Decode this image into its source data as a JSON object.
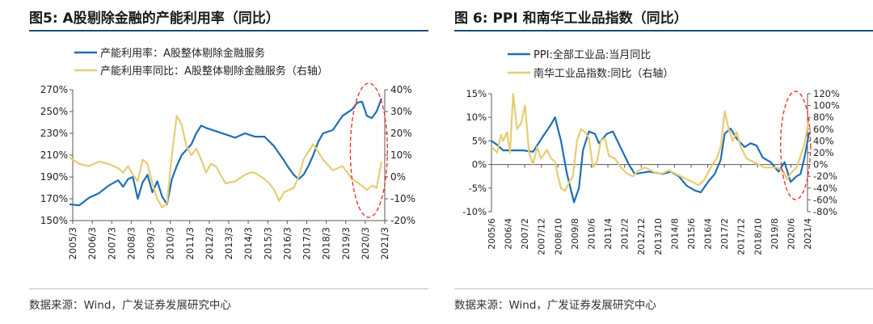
{
  "colors": {
    "blue": "#1f6fb2",
    "yellow": "#e6cd74",
    "axis": "#595959",
    "highlight": "#e53935"
  },
  "left": {
    "title": "图5: A股剔除金融的产能利用率（同比）",
    "source": "数据来源：Wind，广发证券发展研究中心"
  },
  "right": {
    "title": "图 6: PPI 和南华工业品指数（同比）",
    "source": "数据来源：Wind，广发证券发展研究中心"
  },
  "chart_data": [
    {
      "type": "line",
      "title": "",
      "legend_position": "top-left",
      "grid": false,
      "x_ticks": [
        "2005/3",
        "2006/3",
        "2007/3",
        "2008/3",
        "2009/3",
        "2010/3",
        "2011/3",
        "2012/3",
        "2013/3",
        "2014/3",
        "2015/3",
        "2016/3",
        "2017/3",
        "2018/3",
        "2019/3",
        "2020/3",
        "2021/3"
      ],
      "y_left": {
        "min": 150,
        "max": 270,
        "step": 20,
        "unit": "%"
      },
      "y_right": {
        "min": -20,
        "max": 40,
        "step": 10,
        "unit": "%"
      },
      "series": [
        {
          "name": "产能利用率：A股整体剔除金融服务",
          "color": "blue",
          "axis": "left",
          "x": [
            2005.0,
            2005.5,
            2006.0,
            2006.5,
            2007.0,
            2007.5,
            2007.75,
            2008.0,
            2008.25,
            2008.5,
            2008.75,
            2009.0,
            2009.25,
            2009.5,
            2009.75,
            2010.0,
            2010.25,
            2010.5,
            2010.75,
            2011.0,
            2011.25,
            2011.5,
            2011.75,
            2012.0,
            2012.5,
            2013.0,
            2013.5,
            2014.0,
            2014.5,
            2015.0,
            2015.5,
            2016.0,
            2016.25,
            2016.5,
            2016.75,
            2017.0,
            2017.25,
            2017.5,
            2017.75,
            2018.0,
            2018.5,
            2019.0,
            2019.5,
            2019.75,
            2020.0,
            2020.25,
            2020.5,
            2020.75,
            2021.0
          ],
          "values": [
            165,
            164,
            171,
            175,
            182,
            187,
            181,
            188,
            190,
            170,
            185,
            192,
            176,
            186,
            172,
            165,
            188,
            200,
            210,
            215,
            220,
            230,
            237,
            235,
            232,
            229,
            226,
            230,
            227,
            227,
            218,
            205,
            198,
            192,
            188,
            192,
            200,
            210,
            222,
            230,
            233,
            246,
            252,
            258,
            259,
            246,
            244,
            250,
            262
          ]
        },
        {
          "name": "产能利用率同比：A股整体剔除金融服务（右轴）",
          "color": "yellow",
          "axis": "right",
          "x": [
            2005.0,
            2005.5,
            2006.0,
            2006.5,
            2007.0,
            2007.5,
            2007.75,
            2008.0,
            2008.25,
            2008.5,
            2008.75,
            2009.0,
            2009.25,
            2009.5,
            2009.75,
            2010.0,
            2010.25,
            2010.5,
            2010.75,
            2011.0,
            2011.25,
            2011.5,
            2011.75,
            2012.0,
            2012.25,
            2012.5,
            2013.0,
            2013.5,
            2014.0,
            2014.25,
            2014.5,
            2015.0,
            2015.25,
            2015.5,
            2015.75,
            2016.0,
            2016.5,
            2016.75,
            2017.0,
            2017.5,
            2018.0,
            2018.5,
            2019.0,
            2019.5,
            2020.0,
            2020.25,
            2020.5,
            2020.75,
            2021.0
          ],
          "values": [
            9,
            6,
            5,
            7,
            6,
            4,
            2,
            5,
            1,
            -2,
            8,
            6,
            -3,
            -10,
            -14,
            -12,
            10,
            28,
            24,
            14,
            10,
            13,
            8,
            2,
            6,
            5,
            -3,
            -2,
            1,
            2,
            2,
            -1,
            -3,
            -6,
            -11,
            -7,
            -5,
            0,
            8,
            15,
            8,
            3,
            5,
            -1,
            -4,
            -6,
            -4,
            -5,
            7
          ]
        }
      ],
      "annotations": [
        {
          "type": "dashed-ellipse",
          "color": "highlight",
          "x_range": [
            2019.4,
            2021.3
          ]
        }
      ]
    },
    {
      "type": "line",
      "title": "",
      "legend_position": "top-left",
      "grid": false,
      "x_ticks": [
        "2005/6",
        "2006/4",
        "2007/2",
        "2007/12",
        "2008/10",
        "2009/8",
        "2010/6",
        "2011/4",
        "2012/2",
        "2012/12",
        "2013/10",
        "2014/8",
        "2015/6",
        "2016/4",
        "2017/2",
        "2017/12",
        "2018/10",
        "2019/8",
        "2020/6",
        "2021/4"
      ],
      "y_left": {
        "min": -10,
        "max": 15,
        "step": 5,
        "unit": "%"
      },
      "y_right": {
        "min": -80,
        "max": 120,
        "step": 20,
        "unit": "%"
      },
      "series": [
        {
          "name": "PPI:全部工业品:当月同比",
          "color": "blue",
          "axis": "left",
          "x": [
            2005.42,
            2005.75,
            2006.0,
            2006.5,
            2007.0,
            2007.5,
            2008.0,
            2008.4,
            2008.6,
            2008.9,
            2009.2,
            2009.55,
            2009.8,
            2010.0,
            2010.3,
            2010.6,
            2010.8,
            2011.2,
            2011.5,
            2011.9,
            2012.3,
            2012.6,
            2012.9,
            2013.3,
            2013.7,
            2014.0,
            2014.4,
            2014.8,
            2015.2,
            2015.6,
            2015.9,
            2016.3,
            2016.6,
            2016.9,
            2017.1,
            2017.4,
            2017.7,
            2018.1,
            2018.4,
            2018.7,
            2019.0,
            2019.4,
            2019.8,
            2020.1,
            2020.4,
            2020.7,
            2020.9,
            2021.1,
            2021.33
          ],
          "values": [
            5,
            4,
            3,
            3,
            3,
            2.7,
            6,
            8.5,
            10,
            5,
            -2,
            -8,
            -5,
            3,
            7,
            6.5,
            4.5,
            6.5,
            7,
            3.5,
            0,
            -2,
            -1.8,
            -1.5,
            -1.8,
            -2,
            -1.5,
            -2.5,
            -4.5,
            -5.5,
            -5.9,
            -3.5,
            -2,
            1,
            6.5,
            7.6,
            5.5,
            3.7,
            4.5,
            4,
            1.5,
            0.5,
            -1.5,
            0.5,
            -3.7,
            -2.5,
            -2,
            1.5,
            6.8
          ]
        },
        {
          "name": "南华工业品指数:同比（右轴）",
          "color": "yellow",
          "axis": "right",
          "x": [
            2005.42,
            2005.7,
            2005.9,
            2006.0,
            2006.2,
            2006.35,
            2006.5,
            2006.7,
            2006.9,
            2007.1,
            2007.3,
            2007.5,
            2007.7,
            2007.9,
            2008.2,
            2008.4,
            2008.6,
            2008.75,
            2008.9,
            2009.1,
            2009.3,
            2009.5,
            2009.7,
            2009.9,
            2010.1,
            2010.3,
            2010.5,
            2010.7,
            2010.9,
            2011.1,
            2011.3,
            2011.6,
            2011.9,
            2012.2,
            2012.5,
            2012.8,
            2013.1,
            2013.4,
            2013.7,
            2014.0,
            2014.3,
            2014.6,
            2014.9,
            2015.2,
            2015.5,
            2015.8,
            2016.1,
            2016.4,
            2016.7,
            2016.9,
            2017.1,
            2017.3,
            2017.5,
            2017.7,
            2017.9,
            2018.2,
            2018.5,
            2018.8,
            2019.1,
            2019.4,
            2019.7,
            2020.0,
            2020.25,
            2020.4,
            2020.7,
            2020.9,
            2021.1,
            2021.33
          ],
          "values": [
            30,
            20,
            50,
            40,
            55,
            20,
            120,
            60,
            70,
            100,
            20,
            0,
            30,
            10,
            25,
            10,
            5,
            -20,
            -40,
            -45,
            -30,
            -20,
            40,
            60,
            55,
            45,
            -5,
            5,
            40,
            45,
            15,
            10,
            -5,
            -15,
            -20,
            -10,
            -5,
            -10,
            -15,
            -15,
            -10,
            -15,
            -20,
            -25,
            -30,
            -35,
            -25,
            -5,
            10,
            30,
            90,
            60,
            40,
            55,
            30,
            10,
            5,
            0,
            -5,
            -5,
            -5,
            -10,
            -25,
            -15,
            -5,
            15,
            35,
            80
          ]
        }
      ],
      "annotations": [
        {
          "type": "dashed-ellipse",
          "color": "highlight",
          "x_range": [
            2019.9,
            2021.4
          ]
        }
      ]
    }
  ]
}
